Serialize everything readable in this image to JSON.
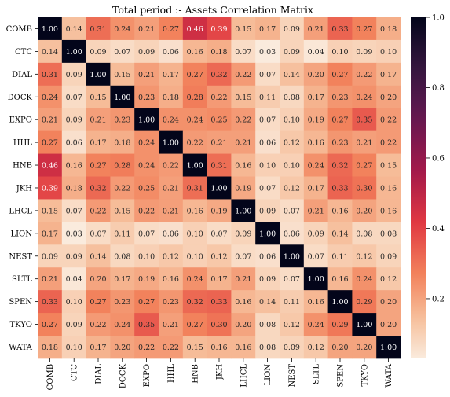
{
  "chart_data": {
    "type": "heatmap",
    "title": "Total period :- Assets Correlation Matrix",
    "xlabel": "",
    "ylabel": "",
    "labels": [
      "COMB",
      "CTC",
      "DIAL",
      "DOCK",
      "EXPO",
      "HHL",
      "HNB",
      "JKH",
      "LHCL",
      "LION",
      "NEST",
      "SLTL",
      "SPEN",
      "TKYO",
      "WATA"
    ],
    "matrix": [
      [
        1.0,
        0.14,
        0.31,
        0.24,
        0.21,
        0.27,
        0.46,
        0.39,
        0.15,
        0.17,
        0.09,
        0.21,
        0.33,
        0.27,
        0.18
      ],
      [
        0.14,
        1.0,
        0.09,
        0.07,
        0.09,
        0.06,
        0.16,
        0.18,
        0.07,
        0.03,
        0.09,
        0.04,
        0.1,
        0.09,
        0.1
      ],
      [
        0.31,
        0.09,
        1.0,
        0.15,
        0.21,
        0.17,
        0.27,
        0.32,
        0.22,
        0.07,
        0.14,
        0.2,
        0.27,
        0.22,
        0.17
      ],
      [
        0.24,
        0.07,
        0.15,
        1.0,
        0.23,
        0.18,
        0.28,
        0.22,
        0.15,
        0.11,
        0.08,
        0.17,
        0.23,
        0.24,
        0.2
      ],
      [
        0.21,
        0.09,
        0.21,
        0.23,
        1.0,
        0.24,
        0.24,
        0.25,
        0.22,
        0.07,
        0.1,
        0.19,
        0.27,
        0.35,
        0.22
      ],
      [
        0.27,
        0.06,
        0.17,
        0.18,
        0.24,
        1.0,
        0.22,
        0.21,
        0.21,
        0.06,
        0.12,
        0.16,
        0.23,
        0.21,
        0.22
      ],
      [
        0.46,
        0.16,
        0.27,
        0.28,
        0.24,
        0.22,
        1.0,
        0.31,
        0.16,
        0.1,
        0.1,
        0.24,
        0.32,
        0.27,
        0.15
      ],
      [
        0.39,
        0.18,
        0.32,
        0.22,
        0.25,
        0.21,
        0.31,
        1.0,
        0.19,
        0.07,
        0.12,
        0.17,
        0.33,
        0.3,
        0.16
      ],
      [
        0.15,
        0.07,
        0.22,
        0.15,
        0.22,
        0.21,
        0.16,
        0.19,
        1.0,
        0.09,
        0.07,
        0.21,
        0.16,
        0.2,
        0.16
      ],
      [
        0.17,
        0.03,
        0.07,
        0.11,
        0.07,
        0.06,
        0.1,
        0.07,
        0.09,
        1.0,
        0.06,
        0.09,
        0.14,
        0.08,
        0.08
      ],
      [
        0.09,
        0.09,
        0.14,
        0.08,
        0.1,
        0.12,
        0.1,
        0.12,
        0.07,
        0.06,
        1.0,
        0.07,
        0.11,
        0.12,
        0.09
      ],
      [
        0.21,
        0.04,
        0.2,
        0.17,
        0.19,
        0.16,
        0.24,
        0.17,
        0.21,
        0.09,
        0.07,
        1.0,
        0.16,
        0.24,
        0.12
      ],
      [
        0.33,
        0.1,
        0.27,
        0.23,
        0.27,
        0.23,
        0.32,
        0.33,
        0.16,
        0.14,
        0.11,
        0.16,
        1.0,
        0.29,
        0.2
      ],
      [
        0.27,
        0.09,
        0.22,
        0.24,
        0.35,
        0.21,
        0.27,
        0.3,
        0.2,
        0.08,
        0.12,
        0.24,
        0.29,
        1.0,
        0.2
      ],
      [
        0.18,
        0.1,
        0.17,
        0.2,
        0.22,
        0.22,
        0.15,
        0.16,
        0.16,
        0.08,
        0.09,
        0.12,
        0.2,
        0.2,
        1.0
      ]
    ],
    "colorscale": "rocket_r",
    "color_range": [
      0.03,
      1.0
    ],
    "colorbar_ticks": [
      0.2,
      0.4,
      0.6,
      0.8,
      1.0
    ],
    "colorbar_ticklabels": [
      "0.2",
      "0.4",
      "0.6",
      "0.8",
      "1.0"
    ],
    "annotation_format": "2 decimals"
  }
}
